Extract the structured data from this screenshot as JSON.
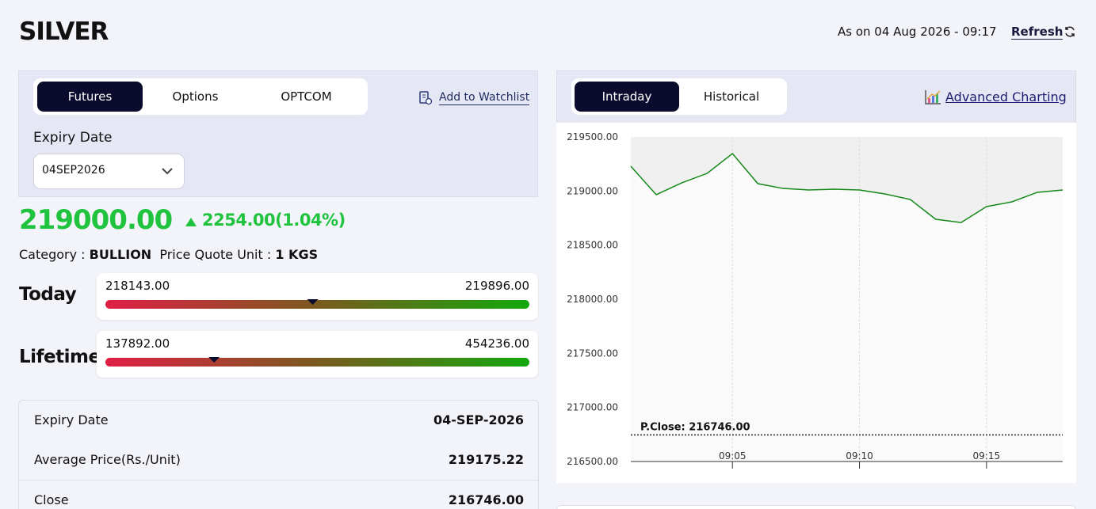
{
  "header": {
    "title": "SILVER",
    "as_on": "As on 04 Aug 2026 - 09:17",
    "refresh": "Refresh"
  },
  "left": {
    "tabs": [
      "Futures",
      "Options",
      "OPTCOM"
    ],
    "watchlist": "Add to Watchlist",
    "expiry_label": "Expiry Date",
    "expiry_value": "04SEP2026",
    "price": {
      "value": 219000,
      "label": "219000.00"
    },
    "change": "2254.00(1.04%)",
    "category_label": "Category :",
    "category_value": "BULLION",
    "unit_label": "Price Quote Unit :",
    "unit_value": "1 KGS",
    "ranges": [
      {
        "name": "Today",
        "low": {
          "value": 218143,
          "label": "218143.00"
        },
        "high": {
          "value": 219896,
          "label": "219896.00"
        }
      },
      {
        "name": "Lifetime",
        "low": {
          "value": 137892,
          "label": "137892.00"
        },
        "high": {
          "value": 454236,
          "label": "454236.00"
        }
      }
    ],
    "table": {
      "rows": [
        [
          "Expiry Date",
          "04-SEP-2026"
        ],
        [
          "Average Price(Rs./Unit)",
          "219175.22"
        ],
        [
          "Close",
          "216746.00"
        ]
      ]
    }
  },
  "right": {
    "tabs": [
      "Intraday",
      "Historical"
    ],
    "advanced": "Advanced Charting"
  },
  "chart_data": {
    "type": "line",
    "categories": [
      null,
      null,
      null,
      null,
      "09:05",
      null,
      null,
      null,
      null,
      "09:10",
      null,
      null,
      null,
      null,
      "09:15",
      null,
      null,
      null
    ],
    "series": [
      {
        "color": "#15891a",
        "values": [
          219229,
          218966,
          219075,
          219163,
          219346,
          219068,
          219024,
          219010,
          219017,
          219010,
          218973,
          218922,
          218739,
          218709,
          218856,
          218900,
          218988,
          219010
        ]
      }
    ],
    "ylim": [
      216500,
      219500
    ],
    "yticks": [
      {
        "value": 216500,
        "label": "216500.00"
      },
      {
        "value": 217000,
        "label": "217000.00"
      },
      {
        "value": 217500,
        "label": "217500.00"
      },
      {
        "value": 218000,
        "label": "218000.00"
      },
      {
        "value": 218500,
        "label": "218500.00"
      },
      {
        "value": 219000,
        "label": "219000.00"
      },
      {
        "value": 219500,
        "label": "219500.00"
      }
    ],
    "pclose": {
      "value": 216746,
      "label": "P.Close: 216746.00"
    },
    "grid": true
  }
}
